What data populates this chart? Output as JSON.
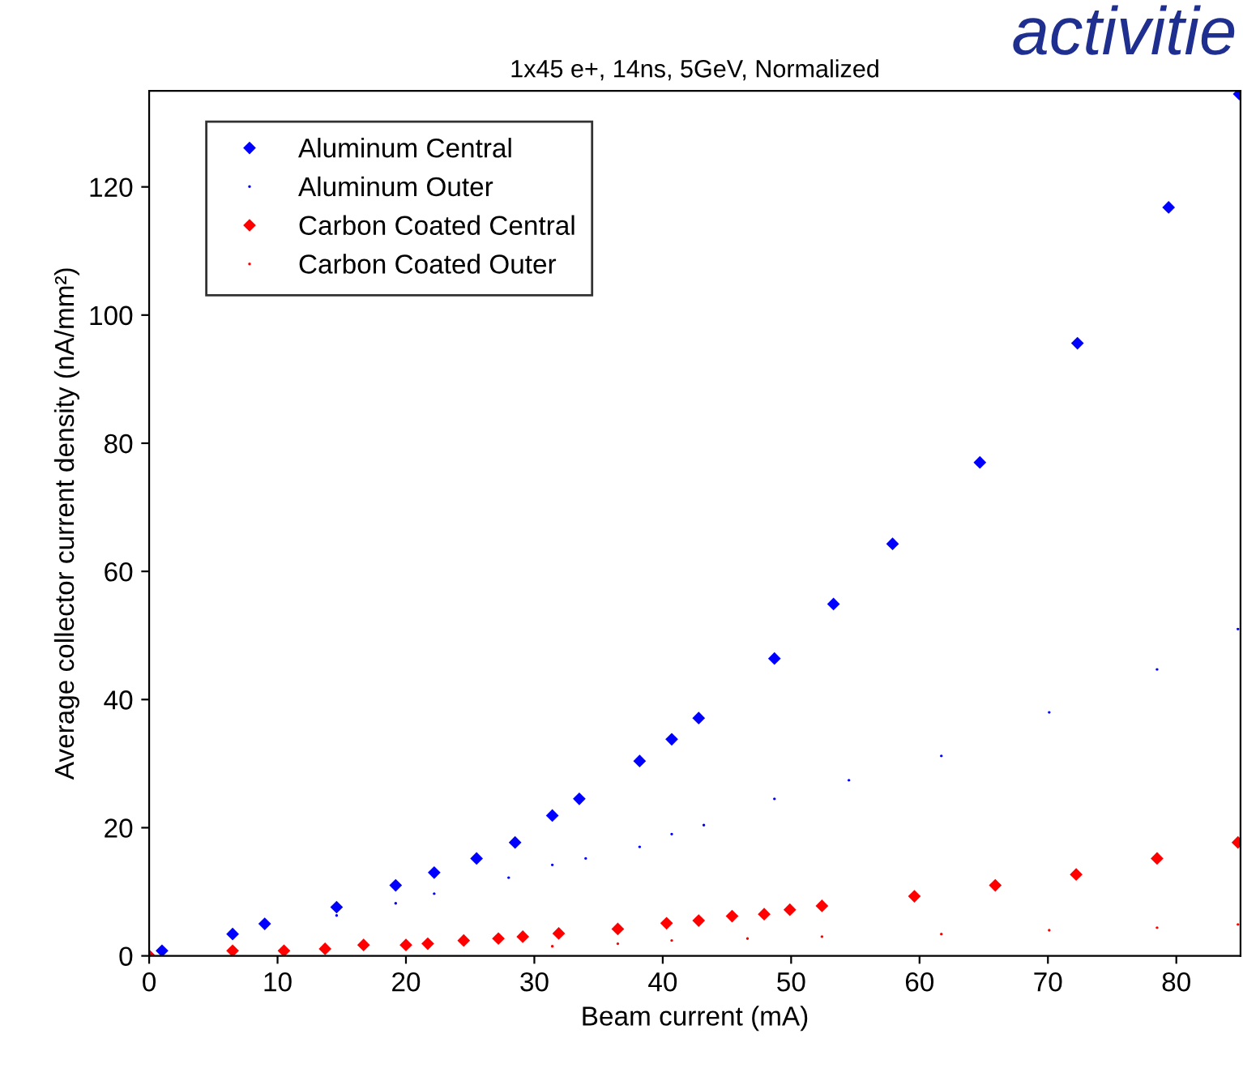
{
  "chart_data": {
    "type": "scatter",
    "title": "1x45 e+, 14ns, 5GeV, Normalized",
    "xlabel": "Beam current (mA)",
    "ylabel": "Average collector current density (nA/mm²)",
    "annotations": [
      "activitie"
    ],
    "xlim": [
      0,
      85
    ],
    "ylim": [
      0,
      135
    ],
    "xticks": [
      0,
      10,
      20,
      30,
      40,
      50,
      60,
      70,
      80
    ],
    "yticks": [
      0,
      20,
      40,
      60,
      80,
      100,
      120
    ],
    "grid": false,
    "legend": "top left",
    "series": [
      {
        "name": "Aluminum Central",
        "color": "#0000ff",
        "marker": "diamond",
        "x": [
          0,
          1,
          6.5,
          9,
          14.6,
          19.2,
          22.2,
          25.5,
          28.5,
          31.4,
          33.5,
          38.2,
          40.7,
          42.8,
          48.7,
          53.3,
          57.9,
          64.7,
          72.3,
          79.4,
          84.9
        ],
        "values": [
          0,
          0.8,
          3.4,
          5,
          7.6,
          11,
          13,
          15.2,
          17.7,
          21.9,
          24.5,
          30.4,
          33.8,
          37.1,
          46.4,
          54.9,
          64.3,
          77,
          95.6,
          116.8,
          134.5
        ]
      },
      {
        "name": "Aluminum Outer",
        "color": "#0000ff",
        "marker": "circle",
        "x": [
          14.6,
          19.2,
          22.2,
          28,
          31.4,
          34,
          38.2,
          40.7,
          43.2,
          48.7,
          54.5,
          61.7,
          70.1,
          78.5,
          84.8
        ],
        "values": [
          6.3,
          8.2,
          9.7,
          12.2,
          14.2,
          15.2,
          17,
          19,
          20.4,
          24.5,
          27.4,
          31.2,
          38,
          44.7,
          51
        ]
      },
      {
        "name": "Carbon Coated Central",
        "color": "#ff0000",
        "marker": "diamond",
        "x": [
          0,
          6.5,
          10.5,
          13.7,
          16.7,
          20,
          21.7,
          24.5,
          27.2,
          29.1,
          31.9,
          36.5,
          40.3,
          42.8,
          45.4,
          47.9,
          49.9,
          52.4,
          59.6,
          65.9,
          72.2,
          78.5,
          84.8
        ],
        "values": [
          0,
          0.8,
          0.8,
          1.1,
          1.7,
          1.7,
          1.9,
          2.4,
          2.7,
          3,
          3.5,
          4.2,
          5.1,
          5.5,
          6.2,
          6.5,
          7.2,
          7.8,
          9.3,
          11,
          12.7,
          15.2,
          17.7
        ]
      },
      {
        "name": "Carbon Coated Outer",
        "color": "#ff0000",
        "marker": "circle",
        "x": [
          31.4,
          36.5,
          40.7,
          46.6,
          52.4,
          61.7,
          70.1,
          78.5,
          84.8
        ],
        "values": [
          1.5,
          1.9,
          2.4,
          2.7,
          3,
          3.4,
          4,
          4.4,
          4.9
        ]
      }
    ]
  }
}
